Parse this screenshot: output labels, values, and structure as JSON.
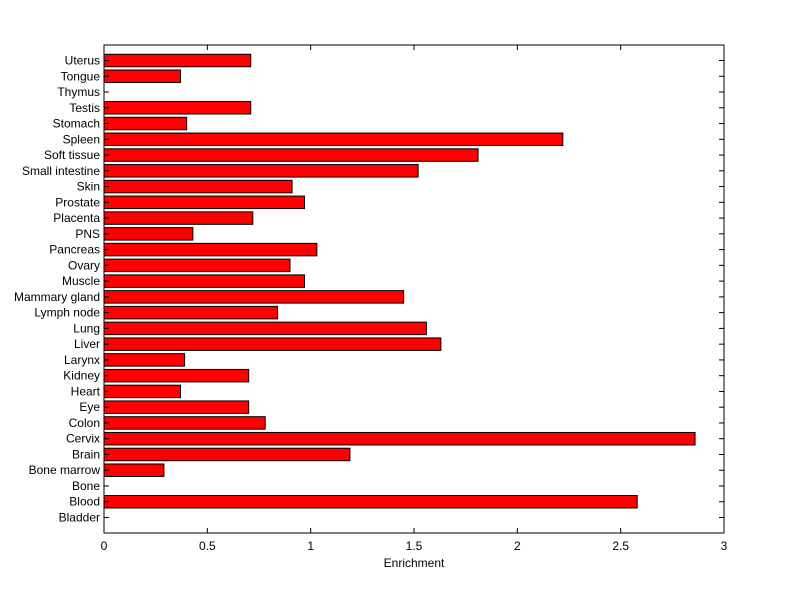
{
  "chart_data": {
    "type": "bar",
    "orientation": "horizontal",
    "title": "",
    "xlabel": "Enrichment",
    "ylabel": "",
    "xlim": [
      0,
      3
    ],
    "xticks": [
      0,
      0.5,
      1,
      1.5,
      2,
      2.5,
      3
    ],
    "xtick_labels": [
      "0",
      "0.5",
      "1",
      "1.5",
      "2",
      "2.5",
      "3"
    ],
    "grid": false,
    "bar_color": "#ff0000",
    "categories": [
      "Bladder",
      "Blood",
      "Bone",
      "Bone marrow",
      "Brain",
      "Cervix",
      "Colon",
      "Eye",
      "Heart",
      "Kidney",
      "Larynx",
      "Liver",
      "Lung",
      "Lymph node",
      "Mammary gland",
      "Muscle",
      "Ovary",
      "Pancreas",
      "PNS",
      "Placenta",
      "Prostate",
      "Skin",
      "Small intestine",
      "Soft tissue",
      "Spleen",
      "Stomach",
      "Testis",
      "Thymus",
      "Tongue",
      "Uterus"
    ],
    "values": [
      0,
      2.58,
      0,
      0.29,
      1.19,
      2.86,
      0.78,
      0.7,
      0.37,
      0.7,
      0.39,
      1.63,
      1.56,
      0.84,
      1.45,
      0.97,
      0.9,
      1.03,
      0.43,
      0.72,
      0.97,
      0.91,
      1.52,
      1.81,
      2.22,
      0.4,
      0.71,
      0,
      0.37,
      0.71
    ]
  }
}
